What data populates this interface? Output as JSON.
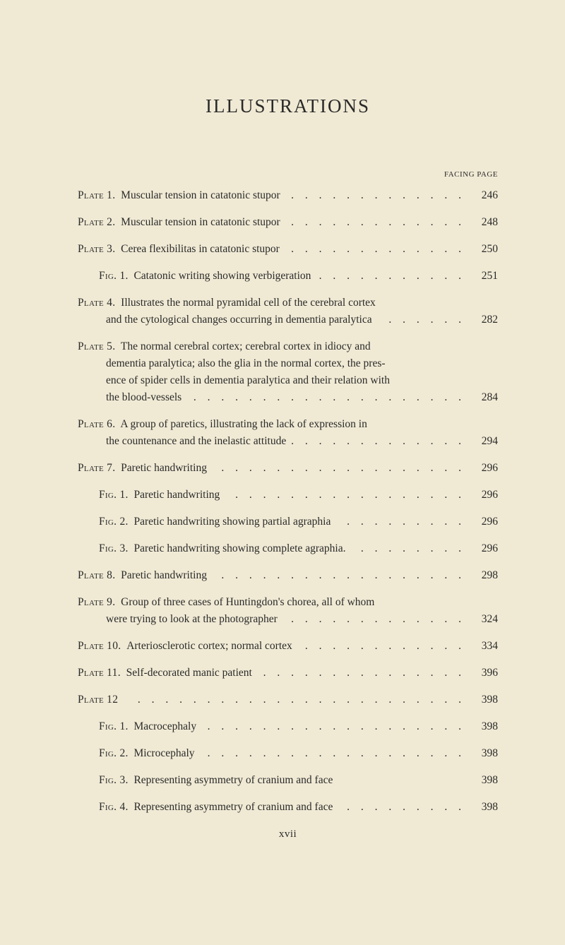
{
  "title": "ILLUSTRATIONS",
  "page_header": "FACING PAGE",
  "footer": "xvii",
  "entries": [
    {
      "type": "simple",
      "spaced": true,
      "label": "Plate 1.",
      "text": "Muscular tension in catatonic stupor",
      "page": "246"
    },
    {
      "type": "simple",
      "spaced": true,
      "label": "Plate 2.",
      "text": "Muscular tension in catatonic stupor",
      "page": "248"
    },
    {
      "type": "simple",
      "spaced": true,
      "label": "Plate 3.",
      "text": "Cerea flexibilitas in catatonic stupor",
      "page": "250"
    },
    {
      "type": "simple",
      "spaced": true,
      "indent": true,
      "label": "Fig. 1.",
      "text": "Catatonic writing showing verbigeration",
      "page": "251"
    },
    {
      "type": "multi",
      "label": "Plate 4.",
      "first": "Illustrates the normal pyramidal cell of the cerebral cortex",
      "cont": [],
      "last": "and the cytological changes occurring in dementia paralytica",
      "page": "282"
    },
    {
      "type": "multi",
      "label": "Plate 5.",
      "first": "The normal cerebral cortex; cerebral cortex in idiocy and",
      "cont": [
        "dementia paralytica; also the glia in the normal cortex, the pres-",
        "ence of spider cells in dementia paralytica and their relation with"
      ],
      "last": "the blood-vessels",
      "page": "284"
    },
    {
      "type": "multi",
      "label": "Plate 6.",
      "first": "A group of paretics, illustrating the lack of expression in",
      "cont": [],
      "last": "the countenance and the inelastic attitude",
      "page": "294"
    },
    {
      "type": "simple",
      "spaced": true,
      "label": "Plate 7.",
      "text": "Paretic handwriting",
      "page": "296"
    },
    {
      "type": "simple",
      "spaced": true,
      "indent": true,
      "label": "Fig. 1.",
      "text": "Paretic handwriting",
      "page": "296"
    },
    {
      "type": "simple",
      "spaced": true,
      "indent": true,
      "label": "Fig. 2.",
      "text": "Paretic handwriting showing partial agraphia",
      "page": "296"
    },
    {
      "type": "simple",
      "spaced": true,
      "indent": true,
      "label": "Fig. 3.",
      "text": "Paretic handwriting showing complete agraphia.",
      "page": "296"
    },
    {
      "type": "simple",
      "spaced": true,
      "label": "Plate 8.",
      "text": "Paretic handwriting",
      "page": "298"
    },
    {
      "type": "multi",
      "label": "Plate 9.",
      "first": "Group of three cases of Huntingdon's chorea, all of whom",
      "cont": [],
      "last": "were trying to look at the photographer",
      "page": "324"
    },
    {
      "type": "simple",
      "spaced": true,
      "label": "Plate 10.",
      "text": "Arteriosclerotic cortex; normal cortex",
      "page": "334"
    },
    {
      "type": "simple",
      "spaced": true,
      "label": "Plate 11.",
      "text": "Self-decorated manic patient",
      "page": "396"
    },
    {
      "type": "simple",
      "spaced": true,
      "label": "Plate 12",
      "text": "",
      "page": "398"
    },
    {
      "type": "simple",
      "spaced": true,
      "indent": true,
      "label": "Fig. 1.",
      "text": "Macrocephaly",
      "page": "398"
    },
    {
      "type": "simple",
      "spaced": true,
      "indent": true,
      "label": "Fig. 2.",
      "text": "Microcephaly",
      "page": "398"
    },
    {
      "type": "simple",
      "spaced": true,
      "indent": true,
      "label": "Fig. 3.",
      "text": "Representing asymmetry of cranium and face",
      "page": "398",
      "nodots": true
    },
    {
      "type": "simple",
      "spaced": false,
      "indent": true,
      "label": "Fig. 4.",
      "text": "Representing asymmetry of cranium and face",
      "page": "398"
    }
  ]
}
